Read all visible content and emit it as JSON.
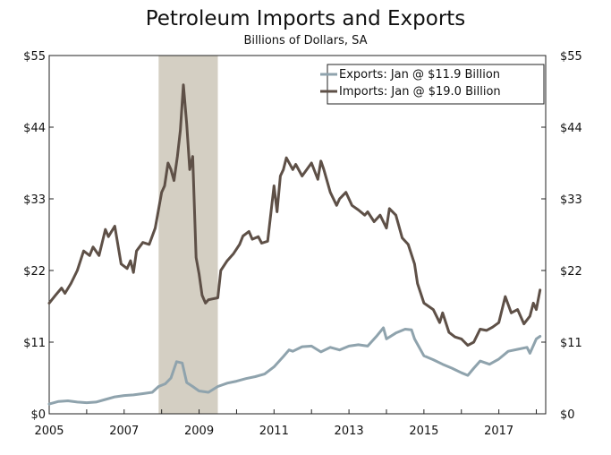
{
  "chart_data": {
    "type": "line",
    "title": "Petroleum Imports and Exports",
    "subtitle": "Billions of Dollars, SA",
    "ylim": [
      0,
      55
    ],
    "y_ticks": [
      "$0",
      "$11",
      "$22",
      "$33",
      "$44",
      "$55"
    ],
    "y_tick_values": [
      0,
      11,
      22,
      33,
      44,
      55
    ],
    "xlim": [
      2005.0,
      2018.25
    ],
    "x_ticks": [
      "2005",
      "2007",
      "2009",
      "2011",
      "2013",
      "2015",
      "2017"
    ],
    "x_tick_values": [
      2005,
      2007,
      2009,
      2011,
      2013,
      2015,
      2017
    ],
    "recession": [
      2007.92,
      2009.5
    ],
    "legend_position": "top-right",
    "series": [
      {
        "name": "Exports: Jan @ $11.9 Billion",
        "color": "#8fa3ad",
        "points": [
          [
            2005.0,
            1.5
          ],
          [
            2005.25,
            1.9
          ],
          [
            2005.5,
            2.0
          ],
          [
            2005.75,
            1.8
          ],
          [
            2006.0,
            1.7
          ],
          [
            2006.25,
            1.8
          ],
          [
            2006.5,
            2.2
          ],
          [
            2006.75,
            2.6
          ],
          [
            2007.0,
            2.8
          ],
          [
            2007.25,
            2.9
          ],
          [
            2007.5,
            3.1
          ],
          [
            2007.75,
            3.3
          ],
          [
            2007.92,
            4.2
          ],
          [
            2008.1,
            4.6
          ],
          [
            2008.25,
            5.5
          ],
          [
            2008.4,
            8.0
          ],
          [
            2008.55,
            7.8
          ],
          [
            2008.67,
            4.8
          ],
          [
            2008.83,
            4.2
          ],
          [
            2009.0,
            3.5
          ],
          [
            2009.25,
            3.3
          ],
          [
            2009.5,
            4.2
          ],
          [
            2009.75,
            4.7
          ],
          [
            2010.0,
            5.0
          ],
          [
            2010.25,
            5.4
          ],
          [
            2010.5,
            5.7
          ],
          [
            2010.75,
            6.1
          ],
          [
            2011.0,
            7.2
          ],
          [
            2011.25,
            8.8
          ],
          [
            2011.4,
            9.8
          ],
          [
            2011.5,
            9.6
          ],
          [
            2011.75,
            10.3
          ],
          [
            2012.0,
            10.4
          ],
          [
            2012.25,
            9.5
          ],
          [
            2012.5,
            10.2
          ],
          [
            2012.75,
            9.8
          ],
          [
            2013.0,
            10.4
          ],
          [
            2013.25,
            10.6
          ],
          [
            2013.5,
            10.4
          ],
          [
            2013.75,
            12.0
          ],
          [
            2013.92,
            13.2
          ],
          [
            2014.0,
            11.5
          ],
          [
            2014.25,
            12.4
          ],
          [
            2014.5,
            13.0
          ],
          [
            2014.67,
            12.9
          ],
          [
            2014.75,
            11.5
          ],
          [
            2015.0,
            8.9
          ],
          [
            2015.25,
            8.3
          ],
          [
            2015.5,
            7.6
          ],
          [
            2015.75,
            7.0
          ],
          [
            2016.0,
            6.3
          ],
          [
            2016.17,
            5.9
          ],
          [
            2016.33,
            7.0
          ],
          [
            2016.5,
            8.1
          ],
          [
            2016.75,
            7.6
          ],
          [
            2017.0,
            8.4
          ],
          [
            2017.25,
            9.6
          ],
          [
            2017.5,
            9.9
          ],
          [
            2017.75,
            10.2
          ],
          [
            2017.83,
            9.3
          ],
          [
            2018.0,
            11.5
          ],
          [
            2018.1,
            11.9
          ]
        ]
      },
      {
        "name": "Imports: Jan @ $19.0 Billion",
        "color": "#5e5047",
        "points": [
          [
            2005.0,
            17.0
          ],
          [
            2005.17,
            18.2
          ],
          [
            2005.33,
            19.3
          ],
          [
            2005.42,
            18.5
          ],
          [
            2005.58,
            20.0
          ],
          [
            2005.75,
            22.0
          ],
          [
            2005.92,
            25.0
          ],
          [
            2006.08,
            24.3
          ],
          [
            2006.17,
            25.6
          ],
          [
            2006.33,
            24.3
          ],
          [
            2006.5,
            28.3
          ],
          [
            2006.58,
            27.2
          ],
          [
            2006.75,
            28.8
          ],
          [
            2006.92,
            23.0
          ],
          [
            2007.08,
            22.3
          ],
          [
            2007.17,
            23.5
          ],
          [
            2007.25,
            21.7
          ],
          [
            2007.33,
            25.0
          ],
          [
            2007.5,
            26.3
          ],
          [
            2007.67,
            26.0
          ],
          [
            2007.83,
            28.5
          ],
          [
            2008.0,
            34.0
          ],
          [
            2008.08,
            35.0
          ],
          [
            2008.17,
            38.5
          ],
          [
            2008.25,
            37.5
          ],
          [
            2008.33,
            35.8
          ],
          [
            2008.42,
            39.5
          ],
          [
            2008.5,
            43.5
          ],
          [
            2008.58,
            50.5
          ],
          [
            2008.67,
            44.5
          ],
          [
            2008.75,
            37.5
          ],
          [
            2008.83,
            39.5
          ],
          [
            2008.92,
            24.0
          ],
          [
            2009.0,
            21.5
          ],
          [
            2009.08,
            18.2
          ],
          [
            2009.17,
            17.0
          ],
          [
            2009.25,
            17.5
          ],
          [
            2009.5,
            17.8
          ],
          [
            2009.58,
            22.0
          ],
          [
            2009.75,
            23.5
          ],
          [
            2009.92,
            24.6
          ],
          [
            2010.08,
            26.0
          ],
          [
            2010.17,
            27.3
          ],
          [
            2010.33,
            28.0
          ],
          [
            2010.42,
            26.8
          ],
          [
            2010.58,
            27.2
          ],
          [
            2010.67,
            26.2
          ],
          [
            2010.83,
            26.5
          ],
          [
            2011.0,
            35.0
          ],
          [
            2011.08,
            31.0
          ],
          [
            2011.17,
            36.5
          ],
          [
            2011.25,
            37.5
          ],
          [
            2011.33,
            39.3
          ],
          [
            2011.5,
            37.5
          ],
          [
            2011.58,
            38.3
          ],
          [
            2011.75,
            36.5
          ],
          [
            2012.0,
            38.5
          ],
          [
            2012.17,
            36.0
          ],
          [
            2012.25,
            38.8
          ],
          [
            2012.33,
            37.5
          ],
          [
            2012.5,
            34.0
          ],
          [
            2012.67,
            32.0
          ],
          [
            2012.75,
            33.0
          ],
          [
            2012.92,
            34.0
          ],
          [
            2013.08,
            32.0
          ],
          [
            2013.25,
            31.3
          ],
          [
            2013.42,
            30.5
          ],
          [
            2013.5,
            31.0
          ],
          [
            2013.67,
            29.5
          ],
          [
            2013.83,
            30.5
          ],
          [
            2014.0,
            28.5
          ],
          [
            2014.08,
            31.5
          ],
          [
            2014.25,
            30.5
          ],
          [
            2014.42,
            27.0
          ],
          [
            2014.58,
            26.0
          ],
          [
            2014.75,
            23.0
          ],
          [
            2014.83,
            20.0
          ],
          [
            2015.0,
            17.0
          ],
          [
            2015.25,
            16.0
          ],
          [
            2015.42,
            14.0
          ],
          [
            2015.5,
            15.5
          ],
          [
            2015.67,
            12.5
          ],
          [
            2015.83,
            11.8
          ],
          [
            2016.0,
            11.5
          ],
          [
            2016.17,
            10.5
          ],
          [
            2016.33,
            11.0
          ],
          [
            2016.5,
            13.0
          ],
          [
            2016.67,
            12.8
          ],
          [
            2016.83,
            13.3
          ],
          [
            2017.0,
            14.0
          ],
          [
            2017.17,
            18.0
          ],
          [
            2017.33,
            15.5
          ],
          [
            2017.5,
            16.0
          ],
          [
            2017.67,
            13.8
          ],
          [
            2017.83,
            15.0
          ],
          [
            2017.92,
            17.0
          ],
          [
            2018.0,
            16.0
          ],
          [
            2018.1,
            19.0
          ]
        ]
      }
    ]
  }
}
